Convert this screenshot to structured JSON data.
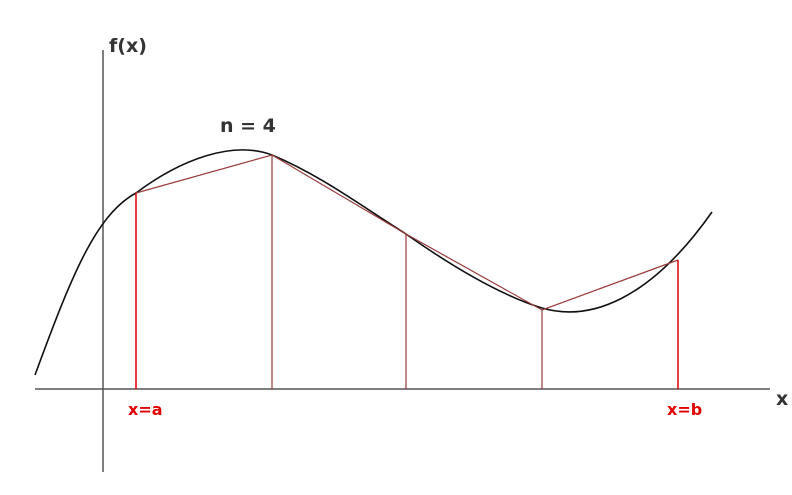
{
  "labels": {
    "y_axis": "f(x)",
    "x_axis": "x",
    "n_label": "n = 4",
    "a_label": "x=a",
    "b_label": "x=b"
  },
  "colors": {
    "curve": "#111111",
    "axes": "#555555",
    "chords": "#9a3a3a",
    "interior_ordinates": "#9a3a3a",
    "end_ordinates": "#e00000",
    "end_labels": "#e00000"
  }
}
